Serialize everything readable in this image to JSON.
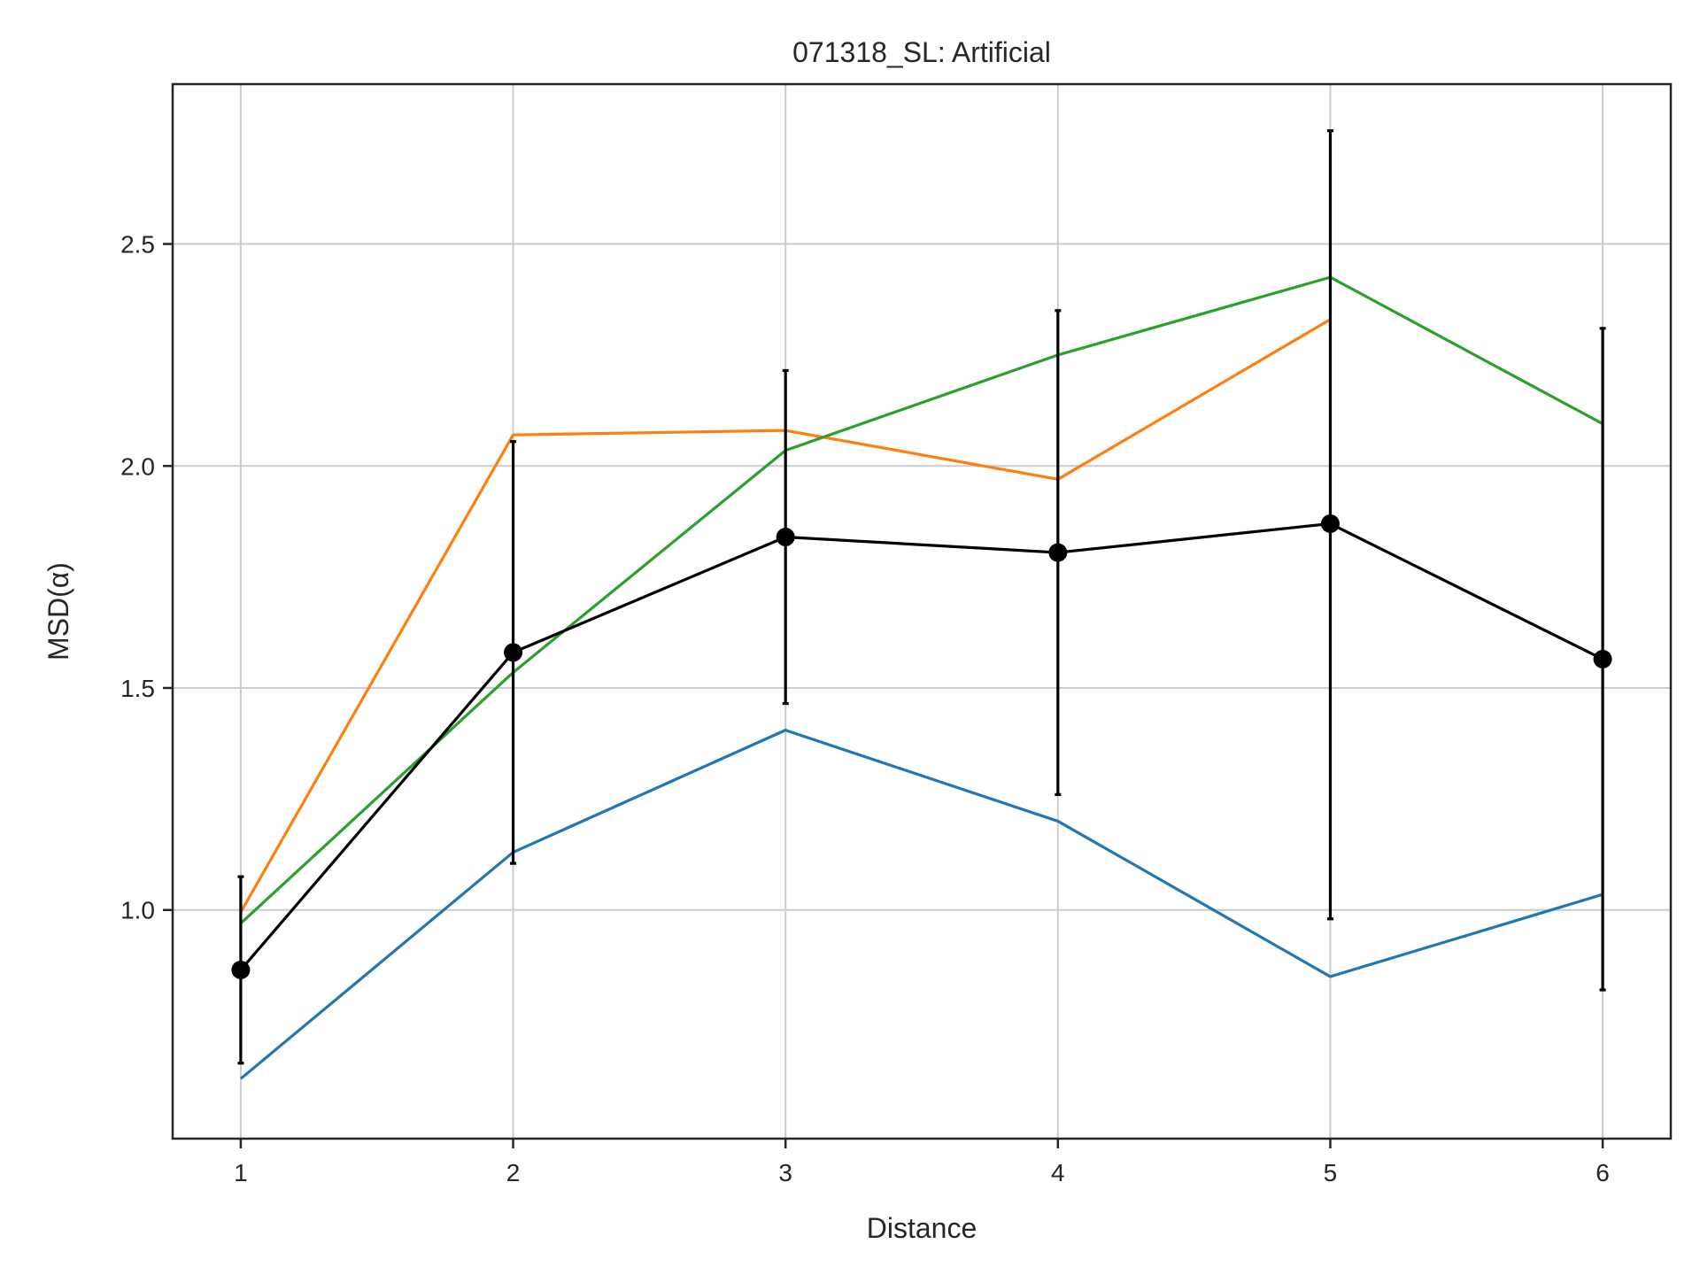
{
  "chart_data": {
    "type": "line",
    "title": "071318_SL: Artificial",
    "xlabel": "Distance",
    "ylabel": "MSD(α)",
    "x": [
      1,
      2,
      3,
      4,
      5,
      6
    ],
    "xlim": [
      0.75,
      6.25
    ],
    "ylim": [
      0.485,
      2.86
    ],
    "xticks": [
      1,
      2,
      3,
      4,
      5,
      6
    ],
    "yticks": [
      1.0,
      1.5,
      2.0,
      2.5
    ],
    "ytick_labels": [
      "1.0",
      "1.5",
      "2.0",
      "2.5"
    ],
    "grid": true,
    "series": [
      {
        "color": "#1f77b4",
        "values": [
          0.62,
          1.13,
          1.405,
          1.2,
          0.85,
          1.035
        ]
      },
      {
        "color": "#ff7f0e",
        "values": [
          0.995,
          2.07,
          2.08,
          1.97,
          2.33,
          null
        ]
      },
      {
        "color": "#2ca02c",
        "values": [
          0.97,
          1.535,
          2.035,
          2.25,
          2.425,
          2.095
        ]
      },
      {
        "color": "#000000",
        "markers": true,
        "values": [
          0.865,
          1.58,
          1.84,
          1.805,
          1.87,
          1.565
        ],
        "error_low": [
          0.655,
          1.105,
          1.465,
          1.26,
          0.98,
          0.82
        ],
        "error_high": [
          1.075,
          2.055,
          2.215,
          2.35,
          2.755,
          2.31
        ]
      }
    ]
  }
}
